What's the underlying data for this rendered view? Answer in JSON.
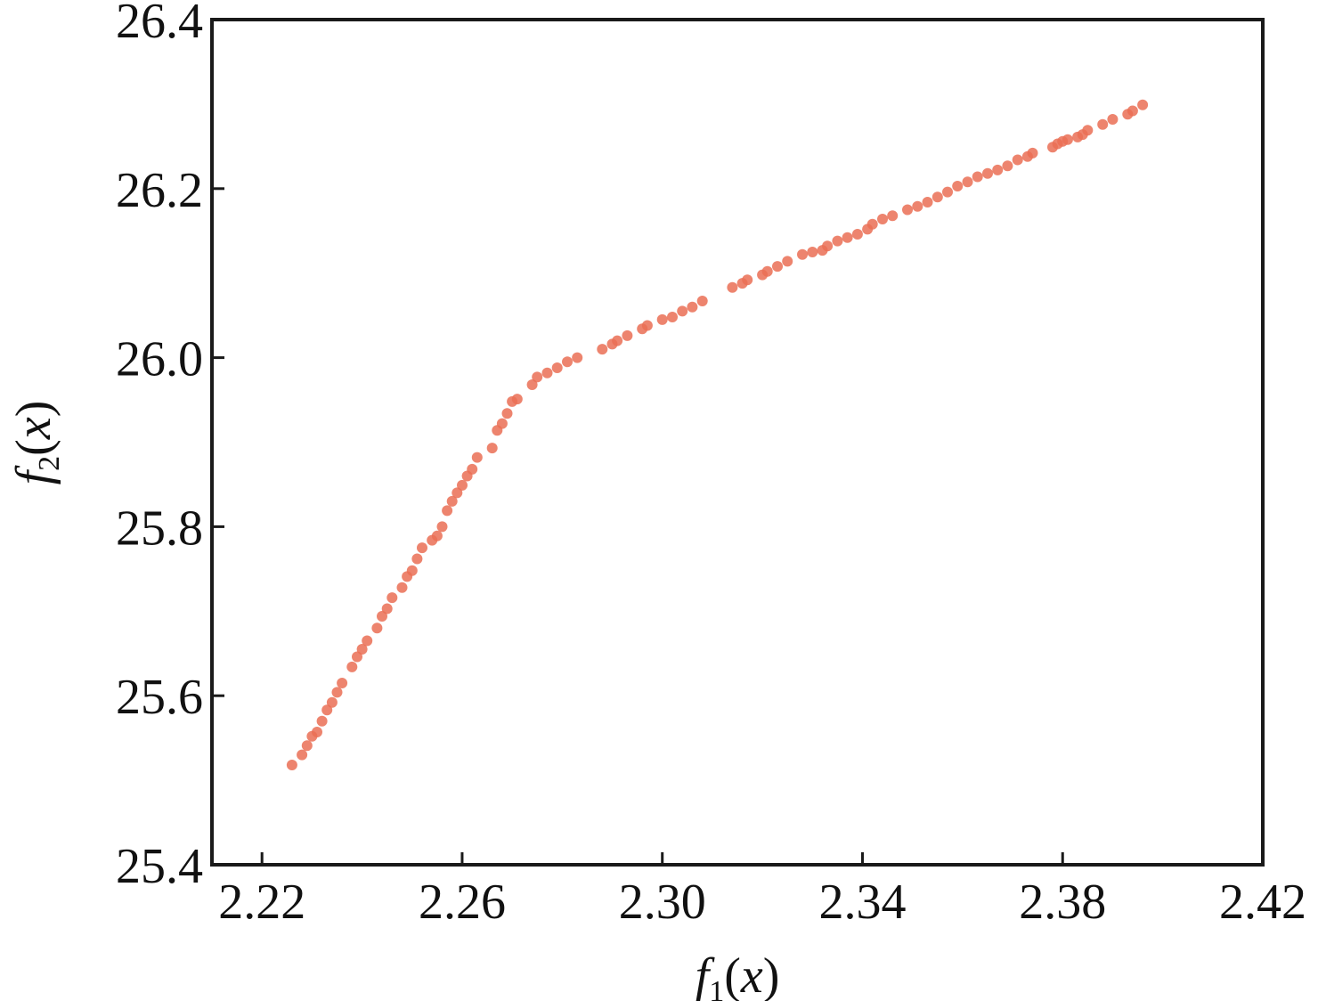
{
  "chart_data": {
    "type": "scatter",
    "title": "",
    "xlabel": {
      "f": "f",
      "sub": "1",
      "open": "(",
      "var": "x",
      "close": ")"
    },
    "ylabel": {
      "f": "f",
      "sub": "2",
      "open": "(",
      "var": "x",
      "close": ")"
    },
    "xlim": [
      2.21,
      2.42
    ],
    "ylim": [
      25.4,
      26.4
    ],
    "xticks": [
      2.22,
      2.26,
      2.3,
      2.34,
      2.38,
      2.42
    ],
    "xtick_labels": [
      "2.22",
      "2.26",
      "2.30",
      "2.34",
      "2.38",
      "2.42"
    ],
    "yticks": [
      25.4,
      25.6,
      25.8,
      26.0,
      26.2,
      26.4
    ],
    "ytick_labels": [
      "25.4",
      "25.6",
      "25.8",
      "26.0",
      "26.2",
      "26.4"
    ],
    "grid": false,
    "legend": "none",
    "marker_color": "#ea6f55",
    "series": [
      {
        "points": [
          [
            2.226,
            25.518
          ],
          [
            2.228,
            25.53
          ],
          [
            2.229,
            25.541
          ],
          [
            2.23,
            25.552
          ],
          [
            2.231,
            25.557
          ],
          [
            2.232,
            25.57
          ],
          [
            2.233,
            25.583
          ],
          [
            2.234,
            25.592
          ],
          [
            2.235,
            25.604
          ],
          [
            2.236,
            25.615
          ],
          [
            2.238,
            25.634
          ],
          [
            2.239,
            25.646
          ],
          [
            2.24,
            25.655
          ],
          [
            2.241,
            25.665
          ],
          [
            2.243,
            25.68
          ],
          [
            2.244,
            25.694
          ],
          [
            2.245,
            25.703
          ],
          [
            2.246,
            25.716
          ],
          [
            2.248,
            25.728
          ],
          [
            2.249,
            25.741
          ],
          [
            2.25,
            25.748
          ],
          [
            2.251,
            25.762
          ],
          [
            2.252,
            25.775
          ],
          [
            2.254,
            25.784
          ],
          [
            2.255,
            25.789
          ],
          [
            2.256,
            25.8
          ],
          [
            2.257,
            25.819
          ],
          [
            2.258,
            25.83
          ],
          [
            2.259,
            25.84
          ],
          [
            2.26,
            25.849
          ],
          [
            2.261,
            25.86
          ],
          [
            2.262,
            25.868
          ],
          [
            2.263,
            25.882
          ],
          [
            2.266,
            25.893
          ],
          [
            2.267,
            25.914
          ],
          [
            2.268,
            25.922
          ],
          [
            2.269,
            25.934
          ],
          [
            2.27,
            25.948
          ],
          [
            2.271,
            25.951
          ],
          [
            2.274,
            25.968
          ],
          [
            2.275,
            25.977
          ],
          [
            2.277,
            25.982
          ],
          [
            2.279,
            25.988
          ],
          [
            2.281,
            25.995
          ],
          [
            2.283,
            26.0
          ],
          [
            2.288,
            26.01
          ],
          [
            2.29,
            26.016
          ],
          [
            2.291,
            26.02
          ],
          [
            2.293,
            26.026
          ],
          [
            2.296,
            26.034
          ],
          [
            2.297,
            26.038
          ],
          [
            2.3,
            26.045
          ],
          [
            2.302,
            26.048
          ],
          [
            2.304,
            26.055
          ],
          [
            2.306,
            26.06
          ],
          [
            2.308,
            26.067
          ],
          [
            2.314,
            26.083
          ],
          [
            2.316,
            26.088
          ],
          [
            2.317,
            26.092
          ],
          [
            2.32,
            26.098
          ],
          [
            2.321,
            26.102
          ],
          [
            2.323,
            26.108
          ],
          [
            2.325,
            26.114
          ],
          [
            2.328,
            26.122
          ],
          [
            2.33,
            26.125
          ],
          [
            2.332,
            26.127
          ],
          [
            2.333,
            26.132
          ],
          [
            2.335,
            26.138
          ],
          [
            2.337,
            26.142
          ],
          [
            2.339,
            26.146
          ],
          [
            2.341,
            26.152
          ],
          [
            2.342,
            26.158
          ],
          [
            2.344,
            26.164
          ],
          [
            2.346,
            26.168
          ],
          [
            2.349,
            26.175
          ],
          [
            2.351,
            26.179
          ],
          [
            2.353,
            26.184
          ],
          [
            2.355,
            26.19
          ],
          [
            2.357,
            26.196
          ],
          [
            2.359,
            26.203
          ],
          [
            2.361,
            26.208
          ],
          [
            2.363,
            26.214
          ],
          [
            2.365,
            26.218
          ],
          [
            2.367,
            26.222
          ],
          [
            2.369,
            26.227
          ],
          [
            2.371,
            26.234
          ],
          [
            2.373,
            26.238
          ],
          [
            2.374,
            26.242
          ],
          [
            2.378,
            26.249
          ],
          [
            2.379,
            26.253
          ],
          [
            2.38,
            26.256
          ],
          [
            2.381,
            26.258
          ],
          [
            2.383,
            26.261
          ],
          [
            2.384,
            26.264
          ],
          [
            2.385,
            26.269
          ],
          [
            2.388,
            26.276
          ],
          [
            2.39,
            26.282
          ],
          [
            2.393,
            26.288
          ],
          [
            2.394,
            26.292
          ],
          [
            2.396,
            26.299
          ]
        ]
      }
    ]
  }
}
